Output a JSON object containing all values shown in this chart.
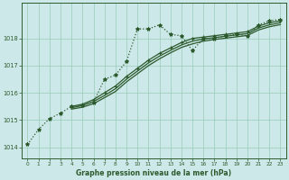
{
  "background_color": "#cce8e8",
  "grid_color": "#99ccbb",
  "line_color": "#2d5a2d",
  "title": "Graphe pression niveau de la mer (hPa)",
  "xlim": [
    -0.5,
    23.5
  ],
  "ylim": [
    1013.6,
    1019.3
  ],
  "yticks": [
    1014,
    1015,
    1016,
    1017,
    1018
  ],
  "xticks": [
    0,
    1,
    2,
    3,
    4,
    5,
    6,
    7,
    8,
    9,
    10,
    11,
    12,
    13,
    14,
    15,
    16,
    17,
    18,
    19,
    20,
    21,
    22,
    23
  ],
  "series": [
    {
      "x": [
        0,
        1,
        2,
        3,
        4,
        5,
        6,
        7,
        8,
        9,
        10,
        11,
        12,
        13,
        14,
        15,
        16,
        17,
        18,
        19,
        20,
        21,
        22,
        23
      ],
      "y": [
        1014.1,
        1014.65,
        1015.05,
        1015.25,
        1015.5,
        1015.55,
        1015.65,
        1016.5,
        1016.65,
        1017.15,
        1018.35,
        1018.35,
        1018.5,
        1018.15,
        1018.1,
        1017.55,
        1018.0,
        1018.0,
        1018.1,
        1018.15,
        1018.1,
        1018.5,
        1018.65,
        1018.7
      ],
      "style": "dotted",
      "marker": "*",
      "markersize": 3.0,
      "linewidth": 0.9
    },
    {
      "x": [
        4,
        5,
        6,
        7,
        8,
        9,
        10,
        11,
        12,
        13,
        14,
        15,
        16,
        17,
        18,
        19,
        20,
        21,
        22,
        23
      ],
      "y": [
        1015.5,
        1015.58,
        1015.75,
        1016.0,
        1016.25,
        1016.6,
        1016.9,
        1017.2,
        1017.45,
        1017.65,
        1017.85,
        1018.0,
        1018.05,
        1018.1,
        1018.15,
        1018.2,
        1018.25,
        1018.45,
        1018.58,
        1018.65
      ],
      "style": "solid",
      "marker": "+",
      "markersize": 3.5,
      "linewidth": 0.9
    },
    {
      "x": [
        4,
        5,
        6,
        7,
        8,
        9,
        10,
        11,
        12,
        13,
        14,
        15,
        16,
        17,
        18,
        19,
        20,
        21,
        22,
        23
      ],
      "y": [
        1015.45,
        1015.53,
        1015.68,
        1015.9,
        1016.15,
        1016.5,
        1016.8,
        1017.1,
        1017.35,
        1017.56,
        1017.76,
        1017.9,
        1017.98,
        1018.03,
        1018.08,
        1018.13,
        1018.18,
        1018.38,
        1018.5,
        1018.58
      ],
      "style": "solid",
      "marker": null,
      "markersize": 0,
      "linewidth": 0.9
    },
    {
      "x": [
        4,
        5,
        6,
        7,
        8,
        9,
        10,
        11,
        12,
        13,
        14,
        15,
        16,
        17,
        18,
        19,
        20,
        21,
        22,
        23
      ],
      "y": [
        1015.4,
        1015.47,
        1015.6,
        1015.82,
        1016.05,
        1016.4,
        1016.7,
        1017.0,
        1017.25,
        1017.47,
        1017.67,
        1017.8,
        1017.9,
        1017.96,
        1018.01,
        1018.06,
        1018.11,
        1018.31,
        1018.43,
        1018.51
      ],
      "style": "solid",
      "marker": null,
      "markersize": 0,
      "linewidth": 0.9
    }
  ]
}
